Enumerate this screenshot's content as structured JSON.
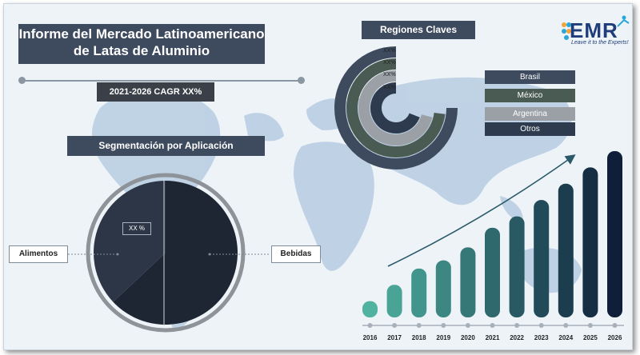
{
  "title_line1": "Informe del Mercado Latinoamericano",
  "title_line2": "de Latas de Aluminio",
  "cagr_label": "2021-2026 CAGR XX%",
  "segmentation_title": "Segmentación por Aplicación",
  "regions_title": "Regiones Claves",
  "logo": {
    "text": "EMR",
    "tagline": "Leave it to the Experts!"
  },
  "colors": {
    "dark_navy": "#3e4a5e",
    "brasil": "#3e4a5e",
    "mexico": "#4a5b54",
    "argentina": "#9aa0a6",
    "otros": "#2e3b4f",
    "pie_dark": "#1e2634",
    "pie_mid": "#2c3646",
    "bar_start": "#4fb3a0",
    "bar_end": "#0f1f3a"
  },
  "chart_data": [
    {
      "type": "pie",
      "title": "Segmentación por Aplicación",
      "slices": [
        {
          "label": "Alimentos",
          "value": 37,
          "value_text": "XX %"
        },
        {
          "label": "Bebidas",
          "value": 63
        }
      ]
    },
    {
      "type": "radial_bar",
      "title": "Regiones Claves",
      "series": [
        {
          "name": "Brasil",
          "value_text": "XX%",
          "fraction": 0.75
        },
        {
          "name": "México",
          "value_text": "XX%",
          "fraction": 0.73
        },
        {
          "name": "Argentina",
          "value_text": "XX%",
          "fraction": 0.71
        },
        {
          "name": "Otros",
          "value_text": "XX%",
          "fraction": 0.69
        }
      ]
    },
    {
      "type": "bar",
      "categories": [
        "2016",
        "2017",
        "2018",
        "2019",
        "2020",
        "2021",
        "2022",
        "2023",
        "2024",
        "2025",
        "2026"
      ],
      "values": [
        1,
        2,
        3,
        3.5,
        4.3,
        5.5,
        6.2,
        7.2,
        8.2,
        9.2,
        10.2
      ]
    }
  ]
}
